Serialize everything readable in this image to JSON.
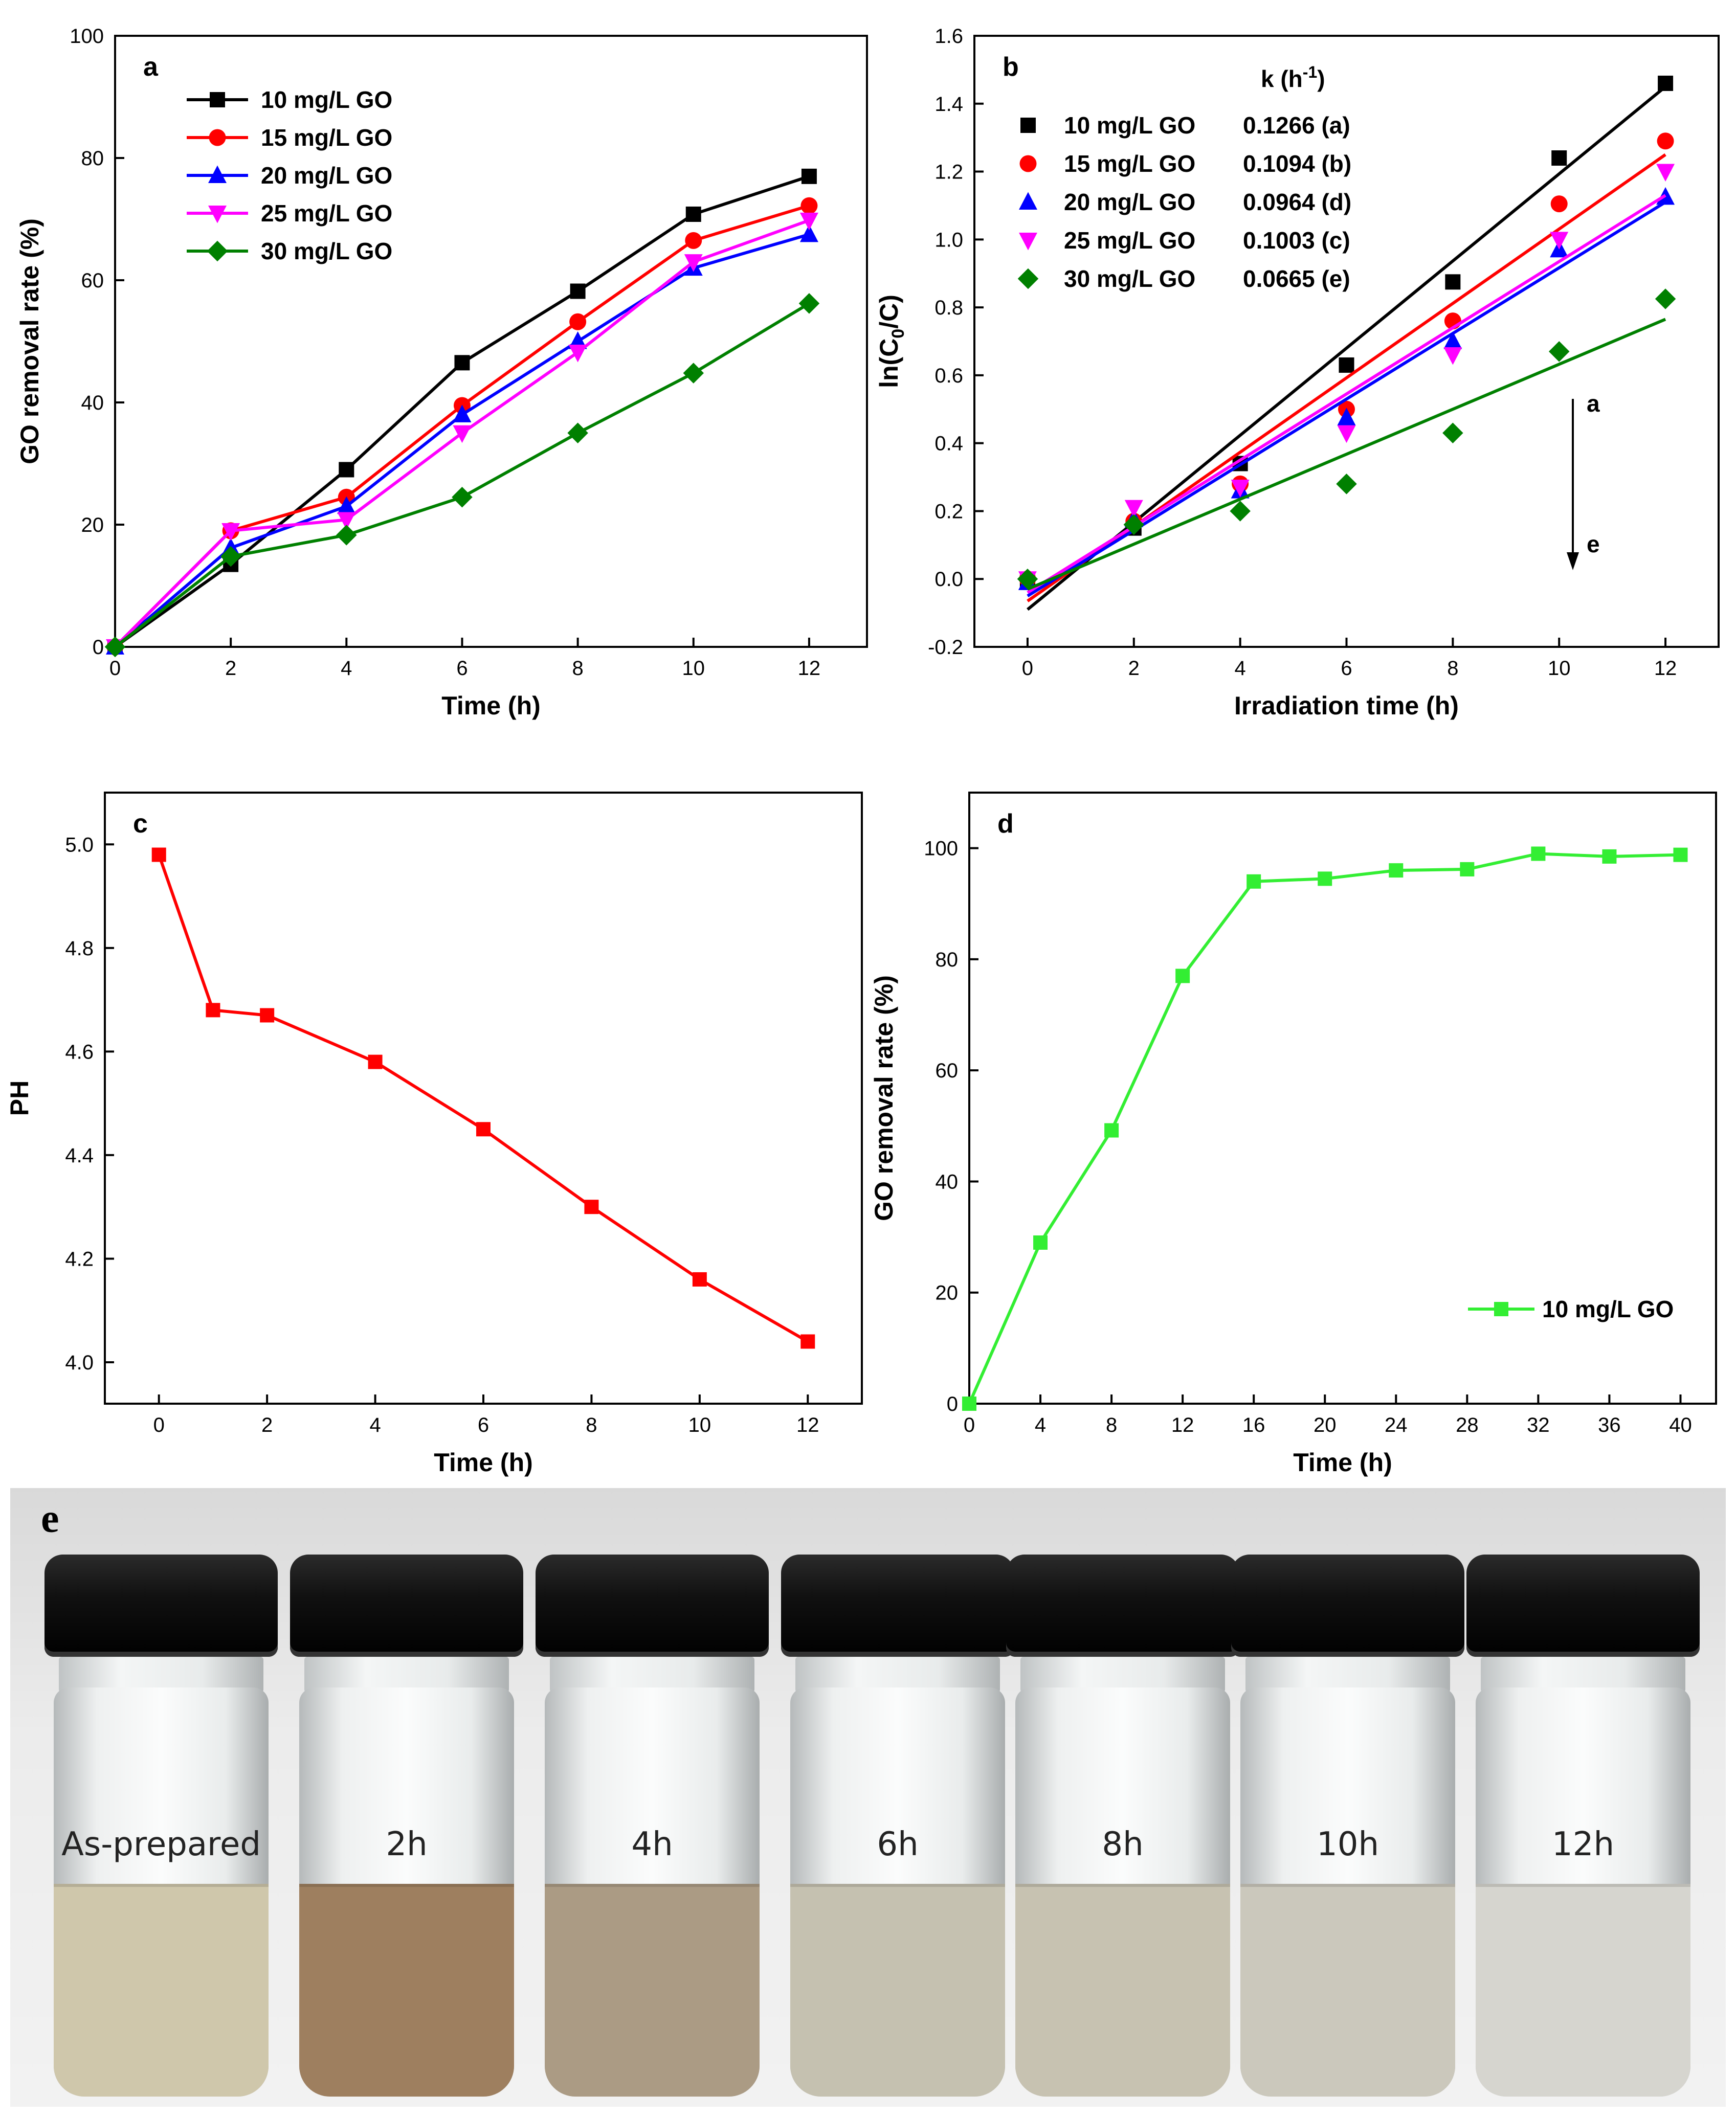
{
  "chart_data": [
    {
      "panel_label": "a",
      "type": "line",
      "xlabel": "Time (h)",
      "ylabel": "GO removal rate (%)",
      "xlim": [
        0,
        13
      ],
      "ylim": [
        0,
        100
      ],
      "xticks": [
        0,
        2,
        4,
        6,
        8,
        10,
        12
      ],
      "yticks": [
        0,
        20,
        40,
        60,
        80,
        100
      ],
      "x": [
        0,
        2,
        4,
        6,
        8,
        10,
        12
      ],
      "legend_position": "top-left",
      "series": [
        {
          "name": "10 mg/L GO",
          "color": "#000000",
          "marker": "square",
          "values": [
            0,
            13.5,
            29,
            46.5,
            58.2,
            70.8,
            77
          ]
        },
        {
          "name": "15 mg/L GO",
          "color": "#ff0000",
          "marker": "circle",
          "values": [
            0,
            19,
            24.5,
            39.5,
            53.2,
            66.5,
            72.2
          ]
        },
        {
          "name": "20 mg/L GO",
          "color": "#0000ff",
          "marker": "triangle-up",
          "values": [
            0,
            16.2,
            23,
            38,
            50,
            62,
            67.5
          ]
        },
        {
          "name": "25 mg/L GO",
          "color": "#ff00ff",
          "marker": "triangle-down",
          "values": [
            0,
            19,
            20.8,
            35,
            48.2,
            63,
            69.8
          ]
        },
        {
          "name": "30 mg/L GO",
          "color": "#008000",
          "marker": "diamond",
          "values": [
            0,
            14.8,
            18.3,
            24.5,
            35,
            44.8,
            56.2
          ]
        }
      ]
    },
    {
      "panel_label": "b",
      "type": "scatter",
      "xlabel": "Irradiation time (h)",
      "ylabel_main": "ln(C",
      "ylabel_sub": "0",
      "ylabel_tail": "/C)",
      "xlim": [
        -1,
        13
      ],
      "ylim": [
        -0.2,
        1.6
      ],
      "xticks": [
        0,
        2,
        4,
        6,
        8,
        10,
        12
      ],
      "yticks": [
        "-0.2",
        "0.0",
        "0.2",
        "0.4",
        "0.6",
        "0.8",
        "1.0",
        "1.2",
        "1.4",
        "1.6"
      ],
      "x": [
        0,
        2,
        4,
        6,
        8,
        10,
        12
      ],
      "k_header_main": "k (h",
      "k_header_sup": "-1",
      "k_header_tail": ")",
      "arrow_top_label": "a",
      "arrow_bottom_label": "e",
      "legend_position": "top-left",
      "series": [
        {
          "name": "10 mg/L GO",
          "k_label": "0.1266 (a)",
          "color": "#000000",
          "marker": "square",
          "values": [
            -0.01,
            0.15,
            0.34,
            0.63,
            0.875,
            1.24,
            1.46
          ],
          "fit": [
            -0.09,
            1.45
          ]
        },
        {
          "name": "15 mg/L GO",
          "k_label": "0.1094 (b)",
          "color": "#ff0000",
          "marker": "circle",
          "values": [
            0,
            0.17,
            0.28,
            0.5,
            0.76,
            1.105,
            1.29
          ],
          "fit": [
            -0.065,
            1.25
          ]
        },
        {
          "name": "20 mg/L GO",
          "k_label": "0.0964 (d)",
          "color": "#0000ff",
          "marker": "triangle-up",
          "values": [
            -0.01,
            0.175,
            0.26,
            0.475,
            0.7,
            0.97,
            1.125
          ],
          "fit": [
            -0.05,
            1.11
          ]
        },
        {
          "name": "25 mg/L GO",
          "k_label": "0.1003 (c)",
          "color": "#ff00ff",
          "marker": "triangle-down",
          "values": [
            0,
            0.21,
            0.27,
            0.43,
            0.66,
            1.0,
            1.2
          ],
          "fit": [
            -0.04,
            1.13
          ]
        },
        {
          "name": "30 mg/L GO",
          "k_label": "0.0665 (e)",
          "color": "#008000",
          "marker": "diamond",
          "values": [
            0,
            0.16,
            0.2,
            0.28,
            0.43,
            0.67,
            0.825
          ],
          "fit": [
            -0.03,
            0.765
          ]
        }
      ]
    },
    {
      "panel_label": "c",
      "type": "line",
      "xlabel": "Time (h)",
      "ylabel": "PH",
      "xlim": [
        -1,
        13
      ],
      "ylim": [
        3.92,
        5.1
      ],
      "xticks": [
        0,
        2,
        4,
        6,
        8,
        10,
        12
      ],
      "yticks": [
        "4.0",
        "4.2",
        "4.4",
        "4.6",
        "4.8",
        "5.0"
      ],
      "series": [
        {
          "name": "PH",
          "color": "#ff0000",
          "marker": "square",
          "x": [
            0,
            1,
            2,
            4,
            6,
            8,
            10,
            12
          ],
          "values": [
            4.98,
            4.68,
            4.67,
            4.58,
            4.45,
            4.3,
            4.16,
            4.04
          ]
        }
      ]
    },
    {
      "panel_label": "d",
      "type": "line",
      "xlabel": "Time (h)",
      "ylabel": "GO removal rate (%)",
      "xlim": [
        0,
        42
      ],
      "ylim": [
        0,
        110
      ],
      "xticks": [
        0,
        4,
        8,
        12,
        16,
        20,
        24,
        28,
        32,
        36,
        40
      ],
      "yticks": [
        0,
        20,
        40,
        60,
        80,
        100
      ],
      "legend_position": "bottom-right",
      "series": [
        {
          "name": "10 mg/L GO",
          "color": "#33ee33",
          "marker": "square",
          "x": [
            0,
            4,
            8,
            12,
            16,
            20,
            24,
            28,
            32,
            36,
            40
          ],
          "values": [
            0,
            29,
            49.2,
            77,
            94,
            94.5,
            96,
            96.2,
            99,
            98.5,
            98.8
          ]
        }
      ]
    }
  ],
  "photo": {
    "label": "e",
    "vials": [
      {
        "label": "As-prepared",
        "liquid_color": "#cfc7ab"
      },
      {
        "label": "2h",
        "liquid_color": "#9e7f5f"
      },
      {
        "label": "4h",
        "liquid_color": "#ab9b84"
      },
      {
        "label": "6h",
        "liquid_color": "#c5c1b0"
      },
      {
        "label": "8h",
        "liquid_color": "#c7c2b1"
      },
      {
        "label": "10h",
        "liquid_color": "#cbc8bc"
      },
      {
        "label": "12h",
        "liquid_color": "#d6d5cf"
      }
    ]
  }
}
